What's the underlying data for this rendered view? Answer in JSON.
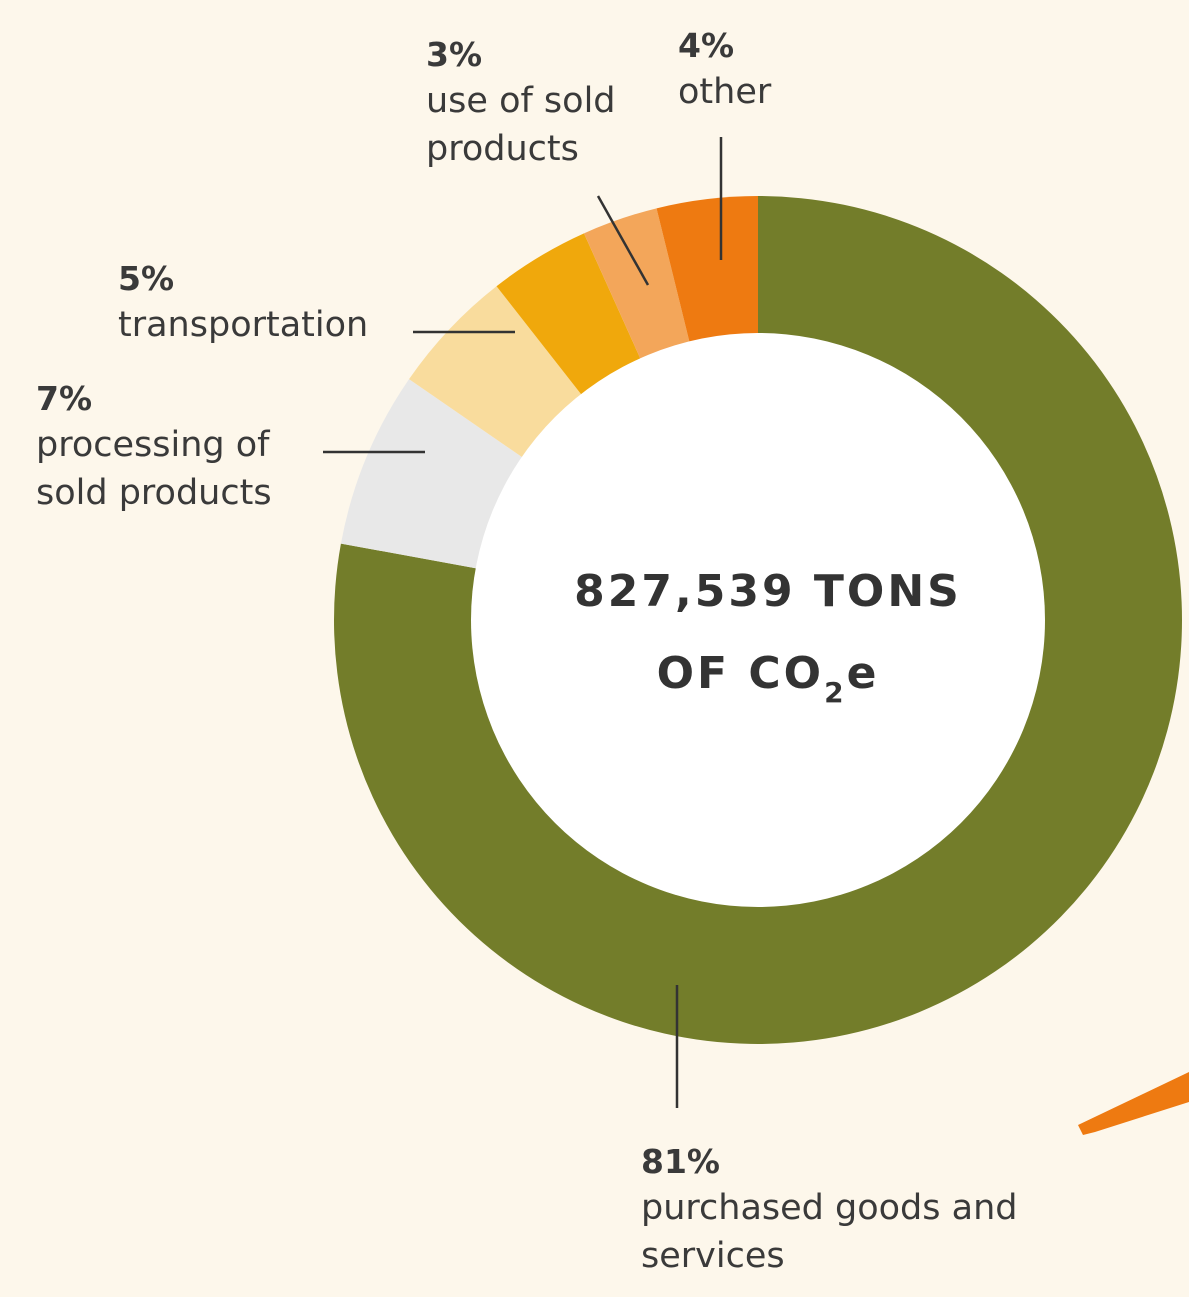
{
  "chart_data": {
    "type": "donut",
    "categories": [
      "purchased goods and services",
      "processing of sold products",
      "transportation",
      null,
      "use of sold products",
      "other"
    ],
    "values": [
      81,
      7,
      5,
      4,
      3,
      4
    ],
    "value_labels": [
      "81%",
      "7%",
      "5%",
      null,
      "3%",
      "4%"
    ],
    "colors": [
      "#737d2a",
      "#e8e8e8",
      "#f9dc9d",
      "#f0a80c",
      "#f3a65a",
      "#ee7a11"
    ],
    "center_label": {
      "line1": "827,539 TONS",
      "line2": "OF CO",
      "subscript": "2",
      "suffix": "e"
    }
  }
}
